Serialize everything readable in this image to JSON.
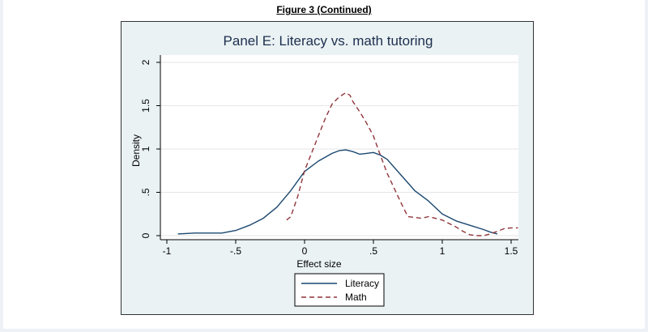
{
  "figure_caption": "Figure 3 (Continued)",
  "chart_data": {
    "type": "line",
    "title": "Panel E: Literacy vs. math tutoring",
    "xlabel": "Effect size",
    "ylabel": "Density",
    "xlim": [
      -1,
      1.6
    ],
    "ylim": [
      0,
      2
    ],
    "xticks": [
      -1,
      -0.5,
      0,
      0.5,
      1,
      1.5
    ],
    "xtick_labels": [
      "-1",
      "-.5",
      "0",
      ".5",
      "1",
      "1.5"
    ],
    "yticks": [
      0,
      0.5,
      1,
      1.5,
      2
    ],
    "ytick_labels": [
      "0",
      ".5",
      "1",
      "1.5",
      "2"
    ],
    "grid": "horizontal",
    "legend_position": "bottom",
    "series": [
      {
        "name": "Literacy",
        "color": "#1a476f",
        "dash": "solid",
        "x": [
          -0.92,
          -0.8,
          -0.6,
          -0.5,
          -0.4,
          -0.3,
          -0.2,
          -0.1,
          0.0,
          0.1,
          0.2,
          0.25,
          0.3,
          0.35,
          0.4,
          0.45,
          0.5,
          0.55,
          0.6,
          0.7,
          0.8,
          0.9,
          1.0,
          1.1,
          1.2,
          1.3,
          1.35,
          1.4
        ],
        "y": [
          0.02,
          0.03,
          0.03,
          0.06,
          0.12,
          0.2,
          0.33,
          0.52,
          0.74,
          0.86,
          0.95,
          0.98,
          0.99,
          0.97,
          0.94,
          0.95,
          0.96,
          0.93,
          0.88,
          0.7,
          0.52,
          0.4,
          0.25,
          0.17,
          0.12,
          0.07,
          0.04,
          0.02
        ]
      },
      {
        "name": "Math",
        "color": "#90353b",
        "dash": "dashed",
        "x": [
          -0.13,
          -0.1,
          -0.05,
          0.0,
          0.05,
          0.1,
          0.15,
          0.2,
          0.25,
          0.3,
          0.33,
          0.35,
          0.4,
          0.45,
          0.5,
          0.55,
          0.6,
          0.65,
          0.7,
          0.75,
          0.8,
          0.85,
          0.9,
          0.95,
          1.0,
          1.05,
          1.1,
          1.15,
          1.2,
          1.25,
          1.3,
          1.35,
          1.4,
          1.45,
          1.5,
          1.55
        ],
        "y": [
          0.18,
          0.22,
          0.45,
          0.75,
          0.95,
          1.15,
          1.35,
          1.52,
          1.6,
          1.65,
          1.62,
          1.55,
          1.43,
          1.3,
          1.15,
          0.93,
          0.72,
          0.55,
          0.38,
          0.22,
          0.21,
          0.2,
          0.22,
          0.2,
          0.18,
          0.14,
          0.1,
          0.05,
          0.01,
          0.0,
          0.0,
          0.02,
          0.05,
          0.08,
          0.09,
          0.09
        ]
      }
    ]
  },
  "colors": {
    "plot_background": "#ffffff",
    "outer_background": "#eaf2f3",
    "title_color": "#1e2f4f",
    "grid_color": "#e6e6e6"
  }
}
